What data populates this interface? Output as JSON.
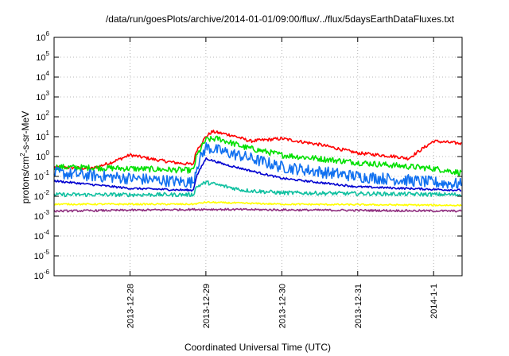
{
  "chart_data": {
    "type": "line",
    "title": "/data/run/goesPlots/archive/2014-01-01/09:00/flux/../flux/5daysEarthDataFluxes.txt",
    "xlabel": "Coordinated Universal Time (UTC)",
    "ylabel": "protons/cm²-s-sr-MeV",
    "yscale": "log",
    "ylim": [
      1e-06,
      1000000.0
    ],
    "y_ticks": [
      {
        "base": "10",
        "exp": "6"
      },
      {
        "base": "10",
        "exp": "5"
      },
      {
        "base": "10",
        "exp": "4"
      },
      {
        "base": "10",
        "exp": "3"
      },
      {
        "base": "10",
        "exp": "2"
      },
      {
        "base": "10",
        "exp": "1"
      },
      {
        "base": "10",
        "exp": "0"
      },
      {
        "base": "10",
        "exp": "-1"
      },
      {
        "base": "10",
        "exp": "-2"
      },
      {
        "base": "10",
        "exp": "-3"
      },
      {
        "base": "10",
        "exp": "-4"
      },
      {
        "base": "10",
        "exp": "-5"
      },
      {
        "base": "10",
        "exp": "-6"
      }
    ],
    "x_unit": "days",
    "x_range": [
      "2013-12-27 00:00",
      "2014-01-01 09:00"
    ],
    "x_ticks": [
      "2013-12-28",
      "2013-12-29",
      "2013-12-30",
      "2013-12-31",
      "2014-1-1"
    ],
    "grid": true,
    "series": [
      {
        "color": "#ff0000",
        "noise": 0.08,
        "points": [
          [
            "2013-12-27 00:00",
            0.3
          ],
          [
            "2013-12-27 12:00",
            0.25
          ],
          [
            "2013-12-27 18:00",
            0.5
          ],
          [
            "2013-12-28 00:00",
            1.2
          ],
          [
            "2013-12-28 08:00",
            0.7
          ],
          [
            "2013-12-28 14:00",
            0.5
          ],
          [
            "2013-12-28 20:00",
            0.4
          ],
          [
            "2013-12-28 21:00",
            2
          ],
          [
            "2013-12-29 00:00",
            10
          ],
          [
            "2013-12-29 02:00",
            18
          ],
          [
            "2013-12-29 08:00",
            12
          ],
          [
            "2013-12-29 14:00",
            6
          ],
          [
            "2013-12-30 00:00",
            8
          ],
          [
            "2013-12-30 12:00",
            4
          ],
          [
            "2013-12-31 00:00",
            1.5
          ],
          [
            "2013-12-31 12:00",
            1.0
          ],
          [
            "2013-12-31 16:00",
            0.8
          ],
          [
            "2014-01-01 00:00",
            6
          ],
          [
            "2014-01-01 09:00",
            4.5
          ]
        ]
      },
      {
        "color": "#00e000",
        "noise": 0.15,
        "points": [
          [
            "2013-12-27 00:00",
            0.3
          ],
          [
            "2013-12-28 00:00",
            0.25
          ],
          [
            "2013-12-28 20:00",
            0.2
          ],
          [
            "2013-12-28 21:00",
            1
          ],
          [
            "2013-12-29 00:00",
            7
          ],
          [
            "2013-12-29 04:00",
            8
          ],
          [
            "2013-12-29 12:00",
            3
          ],
          [
            "2013-12-30 00:00",
            1.2
          ],
          [
            "2013-12-31 00:00",
            0.5
          ],
          [
            "2014-01-01 00:00",
            0.25
          ],
          [
            "2014-01-01 09:00",
            0.15
          ]
        ]
      },
      {
        "color": "#1070f0",
        "noise": 0.3,
        "points": [
          [
            "2013-12-27 00:00",
            0.15
          ],
          [
            "2013-12-28 00:00",
            0.08
          ],
          [
            "2013-12-28 20:00",
            0.05
          ],
          [
            "2013-12-28 21:00",
            0.3
          ],
          [
            "2013-12-29 00:00",
            3
          ],
          [
            "2013-12-29 04:00",
            2
          ],
          [
            "2013-12-29 12:00",
            1
          ],
          [
            "2013-12-30 00:00",
            0.3
          ],
          [
            "2013-12-31 00:00",
            0.1
          ],
          [
            "2014-01-01 00:00",
            0.05
          ],
          [
            "2014-01-01 09:00",
            0.04
          ]
        ]
      },
      {
        "color": "#0000d0",
        "noise": 0.05,
        "points": [
          [
            "2013-12-27 00:00",
            0.06
          ],
          [
            "2013-12-28 00:00",
            0.025
          ],
          [
            "2013-12-28 20:00",
            0.02
          ],
          [
            "2013-12-28 21:00",
            0.1
          ],
          [
            "2013-12-29 00:00",
            0.8
          ],
          [
            "2013-12-29 06:00",
            0.4
          ],
          [
            "2013-12-30 00:00",
            0.08
          ],
          [
            "2013-12-31 00:00",
            0.03
          ],
          [
            "2014-01-01 09:00",
            0.02
          ]
        ]
      },
      {
        "color": "#10c0a0",
        "noise": 0.1,
        "points": [
          [
            "2013-12-27 00:00",
            0.012
          ],
          [
            "2013-12-28 20:00",
            0.012
          ],
          [
            "2013-12-28 21:00",
            0.03
          ],
          [
            "2013-12-29 00:00",
            0.05
          ],
          [
            "2013-12-29 12:00",
            0.02
          ],
          [
            "2013-12-30 00:00",
            0.015
          ],
          [
            "2014-01-01 09:00",
            0.012
          ]
        ]
      },
      {
        "color": "#ffff00",
        "noise": 0.04,
        "points": [
          [
            "2013-12-27 00:00",
            0.004
          ],
          [
            "2013-12-28 20:00",
            0.004
          ],
          [
            "2013-12-29 00:00",
            0.005
          ],
          [
            "2013-12-30 00:00",
            0.004
          ],
          [
            "2014-01-01 09:00",
            0.0035
          ]
        ]
      },
      {
        "color": "#903080",
        "noise": 0.05,
        "points": [
          [
            "2013-12-27 00:00",
            0.0018
          ],
          [
            "2013-12-29 00:00",
            0.0022
          ],
          [
            "2014-01-01 09:00",
            0.0018
          ]
        ]
      }
    ]
  }
}
